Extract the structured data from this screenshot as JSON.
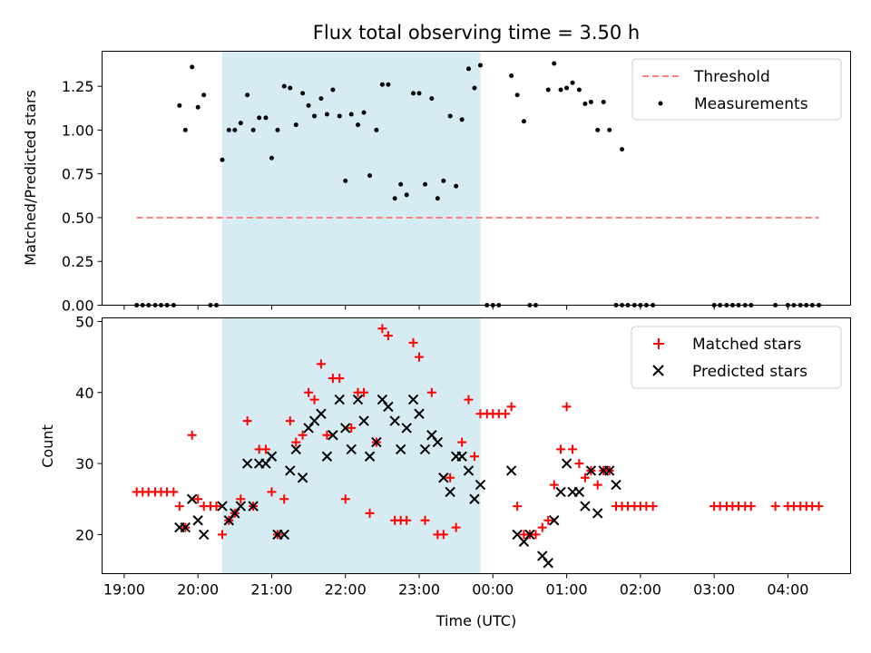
{
  "chart_data": [
    {
      "type": "scatter",
      "title": "Flux total observing time = 3.50 h",
      "xlabel": "",
      "ylabel": "Matched/Predicted stars",
      "xlim": [
        18.7,
        28.85
      ],
      "ylim": [
        0,
        1.45
      ],
      "yticks": [
        0.0,
        0.25,
        0.5,
        0.75,
        1.0,
        1.25
      ],
      "ytick_labels": [
        "0.00",
        "0.25",
        "0.50",
        "0.75",
        "1.00",
        "1.25"
      ],
      "shaded_interval": [
        20.33,
        23.83
      ],
      "legend": {
        "position": "top-right",
        "entries": [
          "Threshold",
          "Measurements"
        ]
      },
      "threshold": {
        "name": "Threshold",
        "y": 0.5,
        "x_range": [
          19.17,
          28.42
        ],
        "color": "#ff7f7f"
      },
      "series": [
        {
          "name": "Measurements",
          "color": "#000000",
          "points": [
            [
              19.17,
              0
            ],
            [
              19.25,
              0
            ],
            [
              19.33,
              0
            ],
            [
              19.42,
              0
            ],
            [
              19.5,
              0
            ],
            [
              19.58,
              0
            ],
            [
              19.67,
              0
            ],
            [
              19.75,
              1.14
            ],
            [
              19.83,
              1.0
            ],
            [
              19.92,
              1.36
            ],
            [
              20.0,
              1.13
            ],
            [
              20.08,
              1.2
            ],
            [
              20.17,
              0
            ],
            [
              20.25,
              0
            ],
            [
              20.33,
              0.83
            ],
            [
              20.42,
              1.0
            ],
            [
              20.5,
              1.0
            ],
            [
              20.58,
              1.04
            ],
            [
              20.67,
              1.2
            ],
            [
              20.75,
              1.0
            ],
            [
              20.83,
              1.07
            ],
            [
              20.92,
              1.07
            ],
            [
              21.0,
              0.84
            ],
            [
              21.08,
              1.0
            ],
            [
              21.17,
              1.25
            ],
            [
              21.25,
              1.24
            ],
            [
              21.33,
              1.03
            ],
            [
              21.42,
              1.21
            ],
            [
              21.5,
              1.14
            ],
            [
              21.58,
              1.08
            ],
            [
              21.67,
              1.18
            ],
            [
              21.75,
              1.09
            ],
            [
              21.83,
              1.23
            ],
            [
              21.92,
              1.08
            ],
            [
              22.0,
              0.71
            ],
            [
              22.08,
              1.09
            ],
            [
              22.17,
              1.03
            ],
            [
              22.25,
              1.1
            ],
            [
              22.33,
              0.74
            ],
            [
              22.42,
              1.0
            ],
            [
              22.5,
              1.26
            ],
            [
              22.58,
              1.26
            ],
            [
              22.67,
              0.61
            ],
            [
              22.75,
              0.69
            ],
            [
              22.83,
              0.63
            ],
            [
              22.92,
              1.21
            ],
            [
              23.0,
              1.21
            ],
            [
              23.08,
              0.69
            ],
            [
              23.17,
              1.18
            ],
            [
              23.25,
              0.61
            ],
            [
              23.33,
              0.71
            ],
            [
              23.42,
              1.08
            ],
            [
              23.5,
              0.68
            ],
            [
              23.58,
              1.06
            ],
            [
              23.67,
              1.35
            ],
            [
              23.75,
              1.24
            ],
            [
              23.83,
              1.37
            ],
            [
              23.92,
              0
            ],
            [
              24.0,
              0
            ],
            [
              24.08,
              0
            ],
            [
              24.25,
              1.31
            ],
            [
              24.33,
              1.2
            ],
            [
              24.42,
              1.05
            ],
            [
              24.5,
              0
            ],
            [
              24.58,
              0
            ],
            [
              24.75,
              1.23
            ],
            [
              24.83,
              1.38
            ],
            [
              24.92,
              1.23
            ],
            [
              25.0,
              1.24
            ],
            [
              25.08,
              1.27
            ],
            [
              25.17,
              1.23
            ],
            [
              25.25,
              1.15
            ],
            [
              25.33,
              1.16
            ],
            [
              25.42,
              1.0
            ],
            [
              25.5,
              1.16
            ],
            [
              25.58,
              1.0
            ],
            [
              25.75,
              0.89
            ],
            [
              25.67,
              0
            ],
            [
              25.75,
              0
            ],
            [
              25.83,
              0
            ],
            [
              25.92,
              0
            ],
            [
              26.0,
              0
            ],
            [
              26.08,
              0
            ],
            [
              26.17,
              0
            ],
            [
              27.0,
              0
            ],
            [
              27.08,
              0
            ],
            [
              27.17,
              0
            ],
            [
              27.25,
              0
            ],
            [
              27.33,
              0
            ],
            [
              27.42,
              0
            ],
            [
              27.5,
              0
            ],
            [
              27.83,
              0
            ],
            [
              28.0,
              0
            ],
            [
              28.08,
              0
            ],
            [
              28.17,
              0
            ],
            [
              28.25,
              0
            ],
            [
              28.33,
              0
            ],
            [
              28.42,
              0
            ]
          ]
        }
      ]
    },
    {
      "type": "scatter",
      "title": "",
      "xlabel": "Time (UTC)",
      "ylabel": "Count",
      "xlim": [
        18.7,
        28.85
      ],
      "ylim": [
        14.5,
        50.5
      ],
      "yticks": [
        20,
        30,
        40,
        50
      ],
      "ytick_labels": [
        "20",
        "30",
        "40",
        "50"
      ],
      "xticks": [
        19,
        20,
        21,
        22,
        23,
        24,
        25,
        26,
        27,
        28
      ],
      "xtick_labels": [
        "19:00",
        "20:00",
        "21:00",
        "22:00",
        "23:00",
        "00:00",
        "01:00",
        "02:00",
        "03:00",
        "04:00"
      ],
      "shaded_interval": [
        20.33,
        23.83
      ],
      "legend": {
        "position": "top-right",
        "entries": [
          "Matched stars",
          "Predicted stars"
        ]
      },
      "series": [
        {
          "name": "Matched stars",
          "marker": "plus",
          "color": "#ff0000",
          "points": [
            [
              19.17,
              26
            ],
            [
              19.25,
              26
            ],
            [
              19.33,
              26
            ],
            [
              19.42,
              26
            ],
            [
              19.5,
              26
            ],
            [
              19.58,
              26
            ],
            [
              19.67,
              26
            ],
            [
              19.75,
              24
            ],
            [
              19.83,
              21
            ],
            [
              19.92,
              34
            ],
            [
              20.0,
              25
            ],
            [
              20.08,
              24
            ],
            [
              20.17,
              24
            ],
            [
              20.25,
              24
            ],
            [
              20.33,
              20
            ],
            [
              20.42,
              22
            ],
            [
              20.5,
              23
            ],
            [
              20.58,
              25
            ],
            [
              20.67,
              36
            ],
            [
              20.75,
              24
            ],
            [
              20.83,
              32
            ],
            [
              20.92,
              32
            ],
            [
              21.0,
              26
            ],
            [
              21.08,
              20
            ],
            [
              21.17,
              25
            ],
            [
              21.25,
              36
            ],
            [
              21.33,
              33
            ],
            [
              21.42,
              34
            ],
            [
              21.5,
              40
            ],
            [
              21.58,
              39
            ],
            [
              21.67,
              44
            ],
            [
              21.75,
              34
            ],
            [
              21.83,
              42
            ],
            [
              21.92,
              42
            ],
            [
              22.0,
              25
            ],
            [
              22.08,
              35
            ],
            [
              22.17,
              40
            ],
            [
              22.25,
              40
            ],
            [
              22.33,
              23
            ],
            [
              22.42,
              33
            ],
            [
              22.5,
              49
            ],
            [
              22.58,
              48
            ],
            [
              22.67,
              22
            ],
            [
              22.75,
              22
            ],
            [
              22.83,
              22
            ],
            [
              22.92,
              47
            ],
            [
              23.0,
              45
            ],
            [
              23.08,
              22
            ],
            [
              23.17,
              40
            ],
            [
              23.25,
              20
            ],
            [
              23.33,
              20
            ],
            [
              23.42,
              28
            ],
            [
              23.5,
              21
            ],
            [
              23.58,
              33
            ],
            [
              23.67,
              39
            ],
            [
              23.75,
              31
            ],
            [
              23.83,
              37
            ],
            [
              23.92,
              37
            ],
            [
              24.0,
              37
            ],
            [
              24.08,
              37
            ],
            [
              24.17,
              37
            ],
            [
              24.25,
              38
            ],
            [
              24.33,
              24
            ],
            [
              24.42,
              20
            ],
            [
              24.5,
              20
            ],
            [
              24.58,
              20
            ],
            [
              24.67,
              21
            ],
            [
              24.75,
              22
            ],
            [
              24.83,
              27
            ],
            [
              24.92,
              32
            ],
            [
              25.0,
              38
            ],
            [
              25.08,
              32
            ],
            [
              25.17,
              30
            ],
            [
              25.25,
              28
            ],
            [
              25.33,
              29
            ],
            [
              25.42,
              27
            ],
            [
              25.5,
              29
            ],
            [
              25.58,
              29
            ],
            [
              25.67,
              24
            ],
            [
              25.75,
              24
            ],
            [
              25.83,
              24
            ],
            [
              25.92,
              24
            ],
            [
              26.0,
              24
            ],
            [
              26.08,
              24
            ],
            [
              26.17,
              24
            ],
            [
              27.0,
              24
            ],
            [
              27.08,
              24
            ],
            [
              27.17,
              24
            ],
            [
              27.25,
              24
            ],
            [
              27.33,
              24
            ],
            [
              27.42,
              24
            ],
            [
              27.5,
              24
            ],
            [
              27.83,
              24
            ],
            [
              28.0,
              24
            ],
            [
              28.08,
              24
            ],
            [
              28.17,
              24
            ],
            [
              28.25,
              24
            ],
            [
              28.33,
              24
            ],
            [
              28.42,
              24
            ]
          ]
        },
        {
          "name": "Predicted stars",
          "marker": "x",
          "color": "#000000",
          "points": [
            [
              19.75,
              21
            ],
            [
              19.83,
              21
            ],
            [
              19.92,
              25
            ],
            [
              20.0,
              22
            ],
            [
              20.08,
              20
            ],
            [
              20.33,
              24
            ],
            [
              20.42,
              22
            ],
            [
              20.5,
              23
            ],
            [
              20.58,
              24
            ],
            [
              20.67,
              30
            ],
            [
              20.75,
              24
            ],
            [
              20.83,
              30
            ],
            [
              20.92,
              30
            ],
            [
              21.0,
              31
            ],
            [
              21.08,
              20
            ],
            [
              21.17,
              20
            ],
            [
              21.25,
              29
            ],
            [
              21.33,
              32
            ],
            [
              21.42,
              28
            ],
            [
              21.5,
              35
            ],
            [
              21.58,
              36
            ],
            [
              21.67,
              37
            ],
            [
              21.75,
              31
            ],
            [
              21.83,
              34
            ],
            [
              21.92,
              39
            ],
            [
              22.0,
              35
            ],
            [
              22.08,
              32
            ],
            [
              22.17,
              39
            ],
            [
              22.25,
              36
            ],
            [
              22.33,
              31
            ],
            [
              22.42,
              33
            ],
            [
              22.5,
              39
            ],
            [
              22.58,
              38
            ],
            [
              22.67,
              36
            ],
            [
              22.75,
              32
            ],
            [
              22.83,
              35
            ],
            [
              22.92,
              39
            ],
            [
              23.0,
              37
            ],
            [
              23.08,
              32
            ],
            [
              23.17,
              34
            ],
            [
              23.25,
              33
            ],
            [
              23.33,
              28
            ],
            [
              23.42,
              26
            ],
            [
              23.5,
              31
            ],
            [
              23.58,
              31
            ],
            [
              23.67,
              29
            ],
            [
              23.75,
              25
            ],
            [
              23.83,
              27
            ],
            [
              24.25,
              29
            ],
            [
              24.33,
              20
            ],
            [
              24.42,
              19
            ],
            [
              24.5,
              20
            ],
            [
              24.67,
              17
            ],
            [
              24.75,
              16
            ],
            [
              24.83,
              22
            ],
            [
              24.92,
              26
            ],
            [
              25.0,
              30
            ],
            [
              25.08,
              26
            ],
            [
              25.17,
              26
            ],
            [
              25.25,
              24
            ],
            [
              25.33,
              29
            ],
            [
              25.42,
              23
            ],
            [
              25.5,
              29
            ],
            [
              25.58,
              29
            ],
            [
              25.67,
              27
            ]
          ]
        }
      ]
    }
  ]
}
